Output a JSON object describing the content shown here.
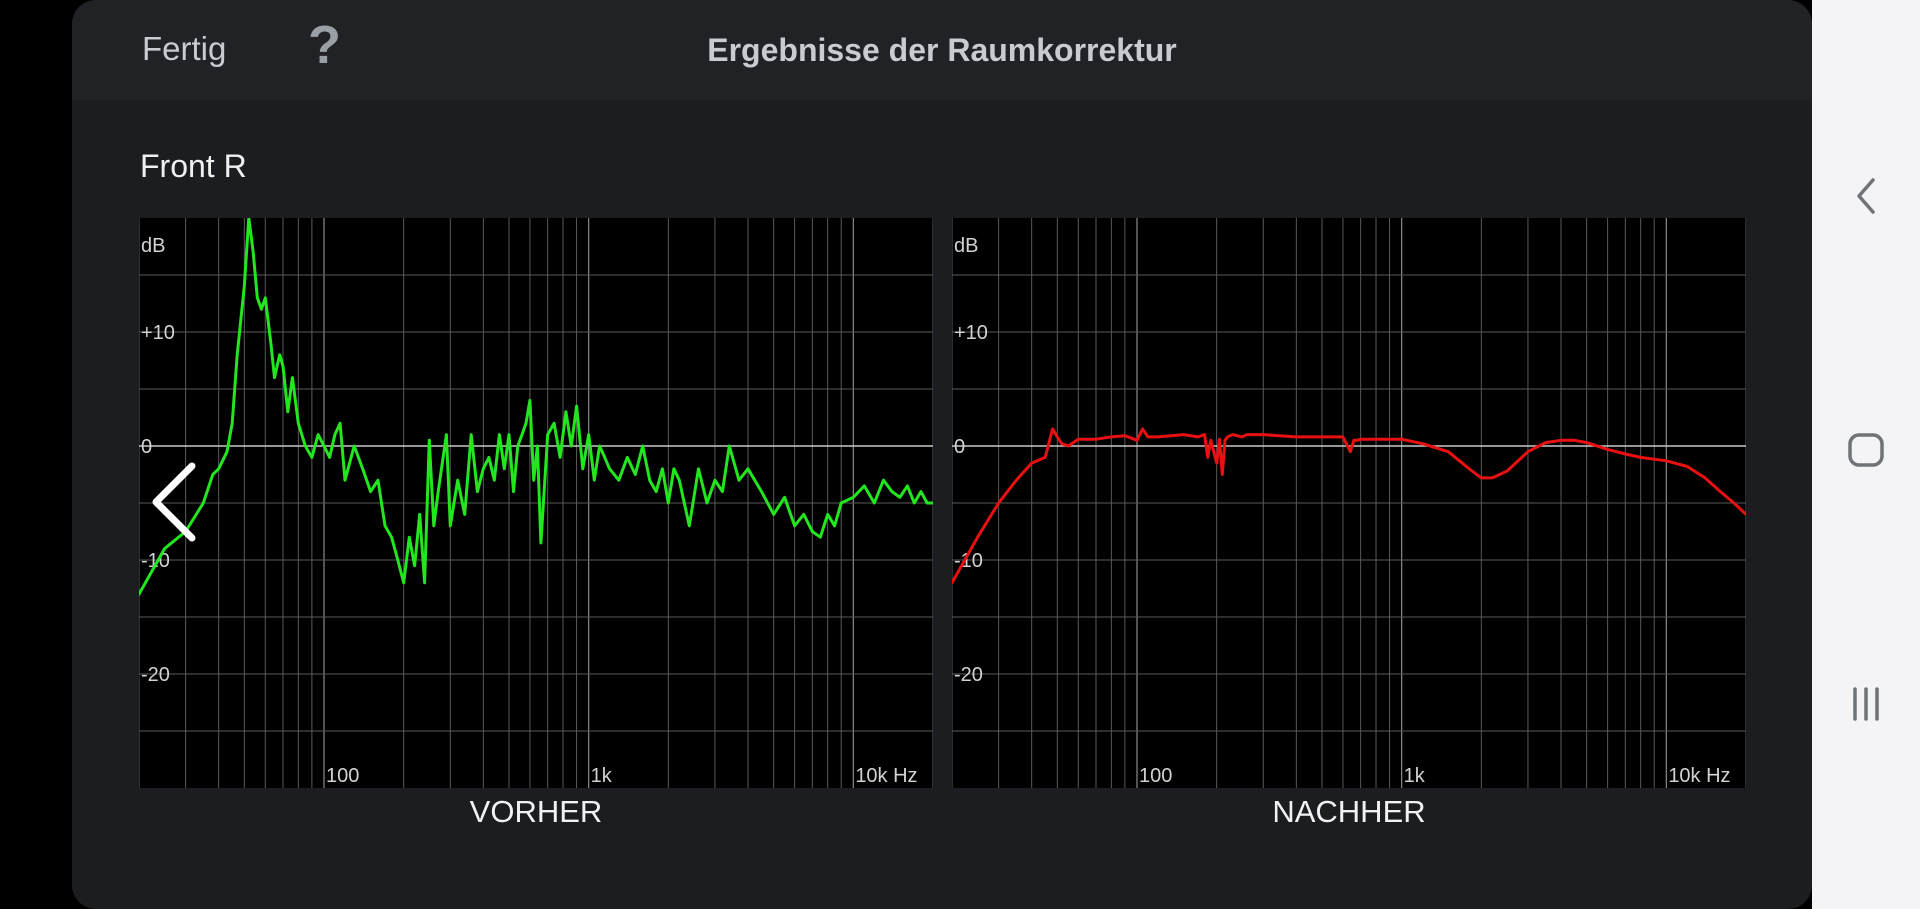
{
  "header": {
    "done_label": "Fertig",
    "help_label": "?",
    "title": "Ergebnisse der Raumkorrektur"
  },
  "channel": "Front R",
  "chart_data": [
    {
      "type": "line",
      "title": "",
      "caption": "VORHER",
      "ylabel": "dB",
      "x_scale": "log",
      "xlim": [
        20,
        20000
      ],
      "ylim": [
        -30,
        20
      ],
      "y_ticks": [
        {
          "value": 10,
          "label": "+10"
        },
        {
          "value": 0,
          "label": "0"
        },
        {
          "value": -10,
          "label": "-10"
        },
        {
          "value": -20,
          "label": "-20"
        }
      ],
      "x_ticks": [
        {
          "value": 100,
          "label": "100"
        },
        {
          "value": 1000,
          "label": "1k"
        },
        {
          "value": 10000,
          "label": "10k Hz"
        }
      ],
      "color": "#22e61e",
      "series": [
        {
          "x": [
            20,
            25,
            30,
            35,
            38,
            40,
            43,
            45,
            47,
            50,
            52,
            54,
            56,
            58,
            60,
            63,
            65,
            68,
            70,
            73,
            76,
            80,
            85,
            90,
            95,
            100,
            105,
            110,
            115,
            120,
            130,
            140,
            150,
            160,
            170,
            180,
            190,
            200,
            210,
            220,
            230,
            240,
            250,
            260,
            270,
            290,
            300,
            320,
            340,
            360,
            380,
            400,
            420,
            440,
            460,
            480,
            500,
            520,
            540,
            560,
            580,
            600,
            620,
            640,
            660,
            700,
            740,
            780,
            820,
            860,
            900,
            950,
            1000,
            1050,
            1100,
            1150,
            1200,
            1300,
            1400,
            1500,
            1600,
            1700,
            1800,
            1900,
            2000,
            2100,
            2200,
            2400,
            2600,
            2800,
            3000,
            3200,
            3400,
            3700,
            4000,
            4500,
            5000,
            5500,
            6000,
            6500,
            7000,
            7500,
            8000,
            8500,
            9000,
            10000,
            11000,
            12000,
            13000,
            14000,
            15000,
            16000,
            17000,
            18000,
            19000,
            20000
          ],
          "y": [
            -13,
            -9,
            -7.5,
            -5,
            -2.5,
            -2,
            -0.5,
            2,
            8,
            14,
            20,
            17,
            13,
            12,
            13,
            9,
            6,
            8,
            7,
            3,
            6,
            2,
            0,
            -1,
            1,
            0,
            -1,
            1,
            2,
            -3,
            0,
            -2,
            -4,
            -3,
            -7,
            -8,
            -10,
            -12,
            -8,
            -10.5,
            -6,
            -12,
            0.5,
            -7,
            -4,
            1,
            -7,
            -3,
            -6,
            1,
            -4,
            -2,
            -1,
            -3,
            1,
            -2,
            1,
            -4,
            0,
            1,
            2,
            4,
            -3,
            0,
            -8.5,
            1,
            2,
            -1,
            3,
            0,
            3.5,
            -2,
            1,
            -3,
            0,
            -1,
            -2,
            -3,
            -1,
            -2.5,
            0,
            -3,
            -4,
            -2,
            -5,
            -2,
            -3,
            -7,
            -2,
            -5,
            -3,
            -4,
            0,
            -3,
            -2,
            -4,
            -6,
            -4.5,
            -7,
            -6,
            -7.5,
            -8,
            -6,
            -7,
            -5,
            -4.5,
            -3.5,
            -5,
            -3,
            -4,
            -4.5,
            -3.5,
            -5,
            -4,
            -5,
            -5
          ]
        }
      ]
    },
    {
      "type": "line",
      "title": "",
      "caption": "NACHHER",
      "ylabel": "dB",
      "x_scale": "log",
      "xlim": [
        20,
        20000
      ],
      "ylim": [
        -30,
        20
      ],
      "y_ticks": [
        {
          "value": 10,
          "label": "+10"
        },
        {
          "value": 0,
          "label": "0"
        },
        {
          "value": -10,
          "label": "-10"
        },
        {
          "value": -20,
          "label": "-20"
        }
      ],
      "x_ticks": [
        {
          "value": 100,
          "label": "100"
        },
        {
          "value": 1000,
          "label": "1k"
        },
        {
          "value": 10000,
          "label": "10k Hz"
        }
      ],
      "color": "#e81010",
      "series": [
        {
          "x": [
            20,
            25,
            30,
            35,
            40,
            45,
            48,
            50,
            52,
            55,
            60,
            70,
            80,
            90,
            100,
            105,
            110,
            120,
            150,
            170,
            180,
            185,
            190,
            200,
            205,
            210,
            215,
            220,
            230,
            250,
            260,
            300,
            400,
            500,
            600,
            640,
            660,
            680,
            700,
            800,
            1000,
            1200,
            1500,
            1800,
            2000,
            2200,
            2500,
            3000,
            3500,
            4000,
            4500,
            5000,
            6000,
            7000,
            8000,
            10000,
            12000,
            14000,
            16000,
            18000,
            20000
          ],
          "y": [
            -12,
            -8,
            -5,
            -3,
            -1.5,
            -1,
            1.5,
            0.8,
            0.2,
            0,
            0.6,
            0.6,
            0.8,
            0.9,
            0.5,
            1.5,
            0.8,
            0.8,
            1,
            0.8,
            1,
            -1,
            0.5,
            -1.5,
            0.6,
            -2.5,
            0.5,
            0.8,
            1,
            0.8,
            1,
            1,
            0.8,
            0.8,
            0.8,
            -0.5,
            0.5,
            0.5,
            0.6,
            0.6,
            0.6,
            0.2,
            -0.5,
            -2,
            -2.8,
            -2.8,
            -2.2,
            -0.5,
            0.3,
            0.5,
            0.5,
            0.3,
            -0.3,
            -0.7,
            -1,
            -1.3,
            -1.8,
            -2.8,
            -4,
            -5,
            -6
          ]
        }
      ]
    }
  ],
  "nav": {
    "prev_icon": "chevron-left-icon",
    "next_icon": "chevron-right-icon",
    "system_back_icon": "back-icon",
    "system_home_icon": "home-icon",
    "system_recent_icon": "recents-icon"
  }
}
